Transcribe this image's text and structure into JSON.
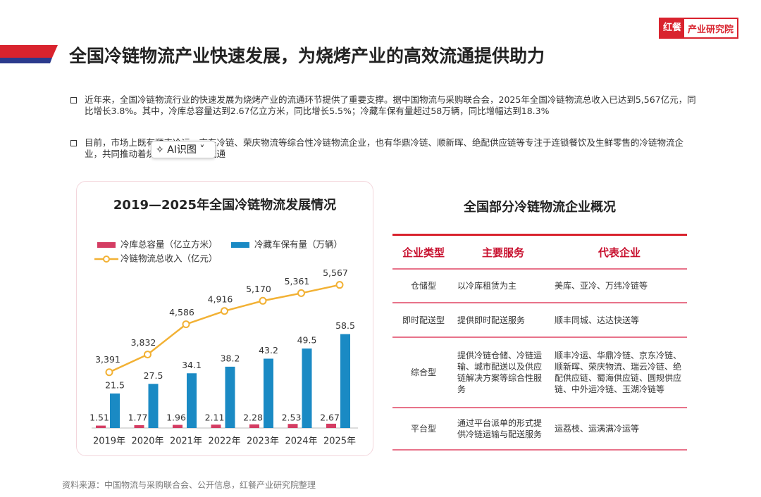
{
  "header": {
    "title": "全国冷链物流产业快速发展，为烧烤产业的高效流通提供助力",
    "logo_brand": "红餐",
    "logo_text": "产业研究院"
  },
  "bullets": [
    "近年来，全国冷链物流行业的快速发展为烧烤产业的流通环节提供了重要支撑。据中国物流与采购联合会，2025年全国冷链物流总收入已达到5,567亿元，同比增长3.8%。其中，冷库总容量达到2.67亿立方米，同比增长5.5%；冷藏车保有量超过58万辆，同比增幅达到18.3%",
    "目前，市场上既有顺丰冷运、京东冷链、荣庆物流等综合性冷链物流企业，也有华鼎冷链、顺新晖、绝配供应链等专注于连锁餐饮及生鲜零售的冷链物流企业，共同推动着烧烤产业的高效流通"
  ],
  "chart_data": {
    "type": "bar-line",
    "title": "2019—2025年全国冷链物流发展情况",
    "categories": [
      "2019年",
      "2020年",
      "2021年",
      "2022年",
      "2023年",
      "2024年",
      "2025年"
    ],
    "ylim": [
      0,
      100
    ],
    "y2lim": [
      2000,
      6000
    ],
    "series": [
      {
        "name": "冷库总容量（亿立方米）",
        "color": "#d43d63",
        "type": "bar",
        "values": [
          1.51,
          1.77,
          1.96,
          2.11,
          2.28,
          2.53,
          2.67
        ]
      },
      {
        "name": "冷藏车保有量（万辆）",
        "color": "#1a8ac4",
        "type": "bar",
        "values": [
          21.5,
          27.5,
          34.1,
          38.2,
          43.2,
          49.5,
          58.5
        ]
      },
      {
        "name": "冷链物流总收入（亿元）",
        "color": "#f2b134",
        "type": "line",
        "axis": "y2",
        "values": [
          3391,
          3832,
          4586,
          4916,
          5170,
          5361,
          5567
        ],
        "value_labels": [
          "3,391",
          "3,832",
          "4,586",
          "4,916",
          "5,170",
          "5,361",
          "5,567"
        ]
      }
    ]
  },
  "table": {
    "title": "全国部分冷链物流企业概况",
    "columns": [
      "企业类型",
      "主要服务",
      "代表企业"
    ],
    "rows": [
      [
        "仓储型",
        "以冷库租赁为主",
        "美库、亚冷、万纬冷链等"
      ],
      [
        "即时配送型",
        "提供即时配送服务",
        "顺丰同城、达达快送等"
      ],
      [
        "综合型",
        "提供冷链仓储、冷链运输、城市配送以及供应链解决方案等综合性服务",
        "顺丰冷运、华鼎冷链、京东冷链、顺新晖、荣庆物流、瑞云冷链、绝配供应链、蜀海供应链、圆规供应链、中外运冷链、玉湖冷链等"
      ],
      [
        "平台型",
        "通过平台派单的形式提供冷链运输与配送服务",
        "运荔枝、运满满冷运等"
      ]
    ]
  },
  "source": "资料来源：中国物流与采购联合会、公开信息，红餐产业研究院整理",
  "overlay": {
    "label": "AI识图"
  }
}
